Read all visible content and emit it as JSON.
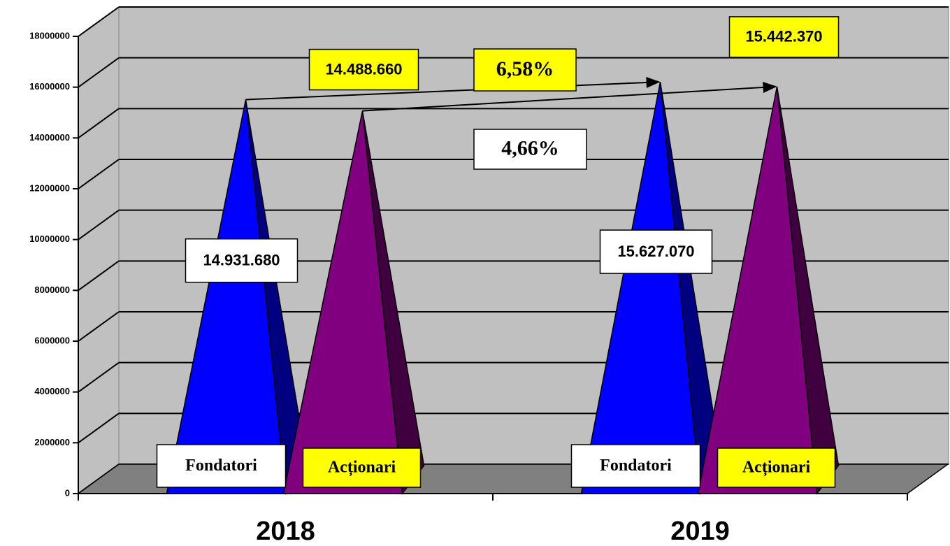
{
  "chart_data": {
    "type": "pyramid",
    "categories": [
      "2018",
      "2019"
    ],
    "series": [
      {
        "name": "Fondatori",
        "color": "#0000ff",
        "side_color": "#000080",
        "label_color": "#ffffff",
        "values": [
          14931680,
          15627070
        ],
        "value_labels": [
          "14.931.680",
          "15.627.070"
        ]
      },
      {
        "name": "Acționari",
        "color": "#800080",
        "side_color": "#400040",
        "label_color": "#ffff00",
        "values": [
          14488660,
          15442370
        ],
        "value_labels": [
          "14.488.660",
          "15.442.370"
        ]
      }
    ],
    "annotations": [
      {
        "text": "6,58%",
        "color": "#ffff00"
      },
      {
        "text": "4,66%",
        "color": "#ffffff"
      }
    ],
    "ylim": [
      0,
      18000000
    ],
    "yticks": [
      0,
      2000000,
      4000000,
      6000000,
      8000000,
      10000000,
      12000000,
      14000000,
      16000000,
      18000000
    ],
    "grid": true
  }
}
